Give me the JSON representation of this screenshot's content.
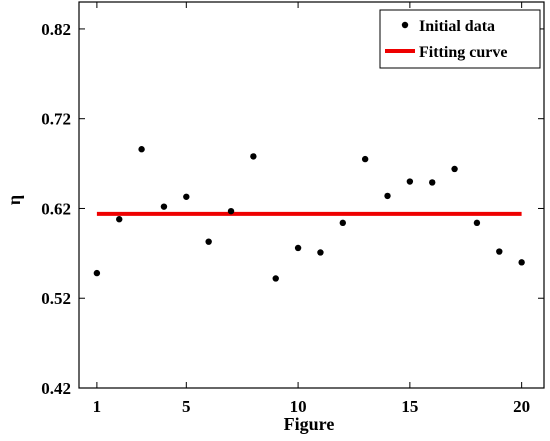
{
  "chart_data": {
    "type": "scatter",
    "xlabel": "Figure",
    "ylabel": "η",
    "xlim": [
      0.2,
      21
    ],
    "ylim": [
      0.42,
      0.85
    ],
    "x_ticks": [
      1,
      5,
      10,
      15,
      20
    ],
    "y_ticks": [
      0.42,
      0.52,
      0.62,
      0.72,
      0.82
    ],
    "y_tick_labels": [
      "0.42",
      "0.52",
      "0.62",
      "0.72",
      "0.82"
    ],
    "grid": false,
    "legend_position": "top-right",
    "series": [
      {
        "name": "Initial data",
        "kind": "scatter",
        "color": "#000000",
        "x": [
          1,
          2,
          3,
          4,
          5,
          6,
          7,
          8,
          9,
          10,
          11,
          12,
          13,
          14,
          15,
          16,
          17,
          18,
          19,
          20
        ],
        "y": [
          0.548,
          0.608,
          0.686,
          0.622,
          0.633,
          0.583,
          0.617,
          0.678,
          0.542,
          0.576,
          0.571,
          0.604,
          0.675,
          0.634,
          0.65,
          0.649,
          0.664,
          0.604,
          0.572,
          0.56
        ]
      },
      {
        "name": "Fitting curve",
        "kind": "line",
        "color": "#ee0000",
        "x": [
          1,
          20
        ],
        "y": [
          0.614,
          0.614
        ]
      }
    ]
  }
}
